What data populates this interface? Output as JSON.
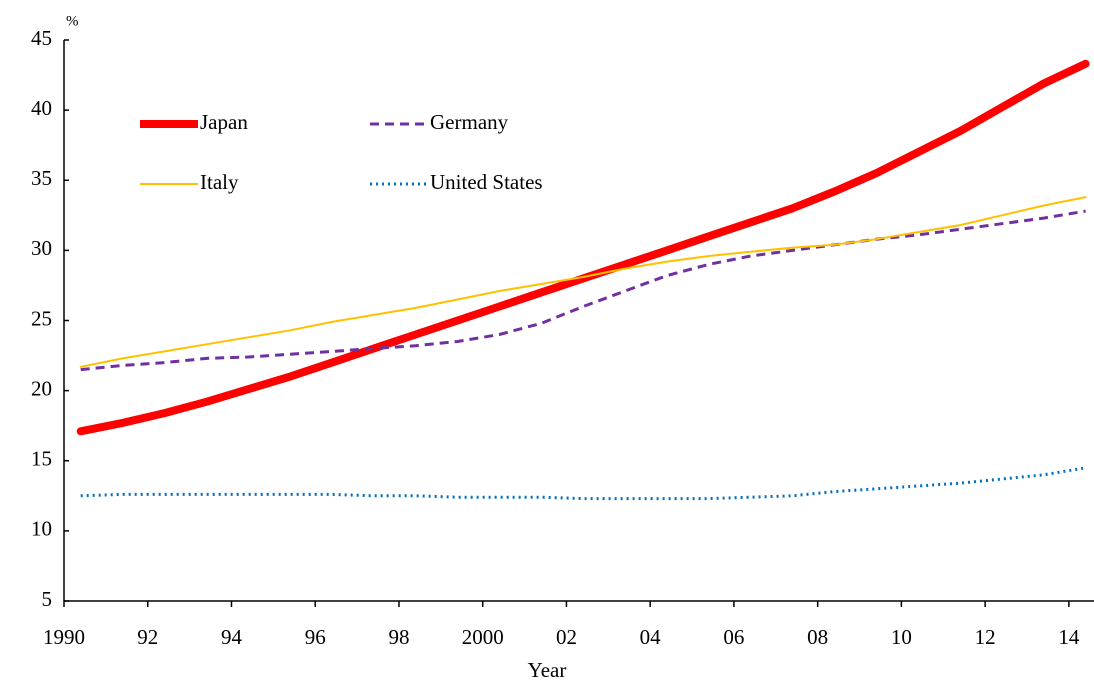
{
  "chart_data": {
    "type": "line",
    "y_label": "%",
    "x_label": "Year",
    "x": [
      1990.4,
      1991.4,
      1992.4,
      1993.4,
      1994.4,
      1995.4,
      1996.4,
      1997.4,
      1998.4,
      1999.4,
      2000.4,
      2001.4,
      2002.4,
      2003.4,
      2004.4,
      2005.4,
      2006.4,
      2007.4,
      2008.4,
      2009.4,
      2010.4,
      2011.4,
      2012.4,
      2013.4,
      2014.4
    ],
    "series": [
      {
        "name": "Japan",
        "color": "#ff0000",
        "line_style": "solid",
        "line_width": 8,
        "values": [
          17.1,
          17.7,
          18.4,
          19.2,
          20.1,
          21.0,
          22.0,
          23.0,
          24.0,
          25.0,
          26.0,
          27.0,
          28.0,
          29.0,
          30.0,
          31.0,
          32.0,
          33.0,
          34.2,
          35.5,
          37.0,
          38.5,
          40.2,
          41.9,
          43.3
        ]
      },
      {
        "name": "Germany",
        "color": "#7030a0",
        "line_style": "dashed",
        "line_width": 3,
        "values": [
          21.5,
          21.8,
          22.0,
          22.3,
          22.4,
          22.6,
          22.8,
          23.0,
          23.2,
          23.5,
          24.0,
          24.8,
          26.0,
          27.1,
          28.2,
          29.0,
          29.6,
          30.0,
          30.4,
          30.8,
          31.1,
          31.5,
          31.9,
          32.3,
          32.8
        ]
      },
      {
        "name": "Italy",
        "color": "#ffc000",
        "line_style": "solid",
        "line_width": 2,
        "values": [
          21.7,
          22.3,
          22.8,
          23.3,
          23.8,
          24.3,
          24.9,
          25.4,
          25.9,
          26.5,
          27.1,
          27.6,
          28.1,
          28.7,
          29.2,
          29.6,
          29.9,
          30.2,
          30.4,
          30.8,
          31.3,
          31.8,
          32.5,
          33.2,
          33.8
        ]
      },
      {
        "name": "United States",
        "color": "#0070c0",
        "line_style": "dotted",
        "line_width": 3,
        "values": [
          12.5,
          12.6,
          12.6,
          12.6,
          12.6,
          12.6,
          12.6,
          12.5,
          12.5,
          12.4,
          12.4,
          12.4,
          12.3,
          12.3,
          12.3,
          12.3,
          12.4,
          12.5,
          12.8,
          13.0,
          13.2,
          13.4,
          13.7,
          14.0,
          14.5
        ]
      }
    ],
    "xlim": [
      1990,
      2014.6
    ],
    "ylim": [
      5,
      45
    ],
    "xticks": [
      1990,
      {
        "value": 1992,
        "label": "92"
      },
      {
        "value": 1994,
        "label": "94"
      },
      {
        "value": 1996,
        "label": "96"
      },
      {
        "value": 1998,
        "label": "98"
      },
      2000,
      {
        "value": 2002,
        "label": "02"
      },
      {
        "value": 2004,
        "label": "04"
      },
      {
        "value": 2006,
        "label": "06"
      },
      {
        "value": 2008,
        "label": "08"
      },
      {
        "value": 2010,
        "label": "10"
      },
      {
        "value": 2012,
        "label": "12"
      },
      {
        "value": 2014,
        "label": "14"
      }
    ],
    "yticks": [
      5,
      10,
      15,
      20,
      25,
      30,
      35,
      40,
      45
    ],
    "grid": false
  }
}
